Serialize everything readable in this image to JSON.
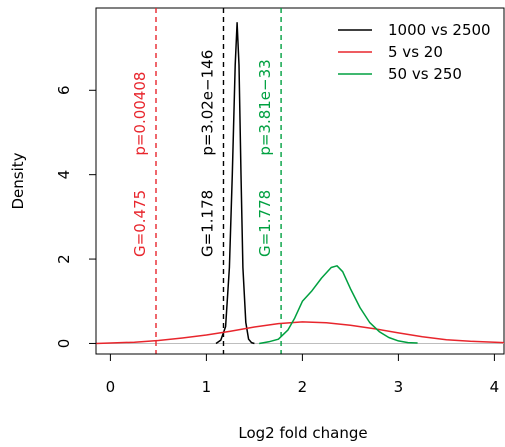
{
  "chart_data": {
    "type": "line",
    "xlabel": "Log2 fold change",
    "ylabel": "Density",
    "xlim": [
      -0.15,
      4.1
    ],
    "ylim": [
      -0.25,
      7.95
    ],
    "xticks": [
      0,
      1,
      2,
      3,
      4
    ],
    "yticks": [
      0,
      2,
      4,
      6
    ],
    "grid": false,
    "legend_position": "top-right",
    "series": [
      {
        "name": "1000 vs 2500",
        "color": "#000000",
        "x": [
          1.1,
          1.15,
          1.2,
          1.24,
          1.27,
          1.3,
          1.32,
          1.34,
          1.36,
          1.38,
          1.41,
          1.44,
          1.47,
          1.5
        ],
        "y": [
          0.0,
          0.08,
          0.4,
          1.8,
          4.0,
          6.6,
          7.6,
          6.6,
          4.0,
          1.8,
          0.5,
          0.1,
          0.02,
          0.0
        ]
      },
      {
        "name": "5 vs 20",
        "color": "#e8262d",
        "x": [
          -0.15,
          0.0,
          0.25,
          0.5,
          0.75,
          1.0,
          1.25,
          1.5,
          1.75,
          2.0,
          2.25,
          2.5,
          2.75,
          3.0,
          3.25,
          3.5,
          3.75,
          4.1
        ],
        "y": [
          0.0,
          0.01,
          0.03,
          0.07,
          0.13,
          0.2,
          0.29,
          0.39,
          0.47,
          0.51,
          0.49,
          0.43,
          0.35,
          0.25,
          0.16,
          0.09,
          0.05,
          0.02
        ]
      },
      {
        "name": "50 vs 250",
        "color": "#00a040",
        "x": [
          1.55,
          1.65,
          1.75,
          1.85,
          1.92,
          2.0,
          2.1,
          2.2,
          2.3,
          2.36,
          2.42,
          2.5,
          2.6,
          2.7,
          2.8,
          2.9,
          3.0,
          3.1,
          3.2
        ],
        "y": [
          0.0,
          0.04,
          0.1,
          0.32,
          0.6,
          1.0,
          1.25,
          1.55,
          1.8,
          1.84,
          1.7,
          1.3,
          0.85,
          0.5,
          0.28,
          0.14,
          0.06,
          0.02,
          0.01
        ]
      }
    ],
    "vlines": [
      {
        "x": 0.475,
        "color": "#e8262d",
        "g_label": "G=0.475",
        "p_label": "p=0.00408"
      },
      {
        "x": 1.178,
        "color": "#000000",
        "g_label": "G=1.178",
        "p_label": "p=3.02e−146"
      },
      {
        "x": 1.778,
        "color": "#00a040",
        "g_label": "G=1.778",
        "p_label": "p=3.81e−33"
      }
    ]
  }
}
